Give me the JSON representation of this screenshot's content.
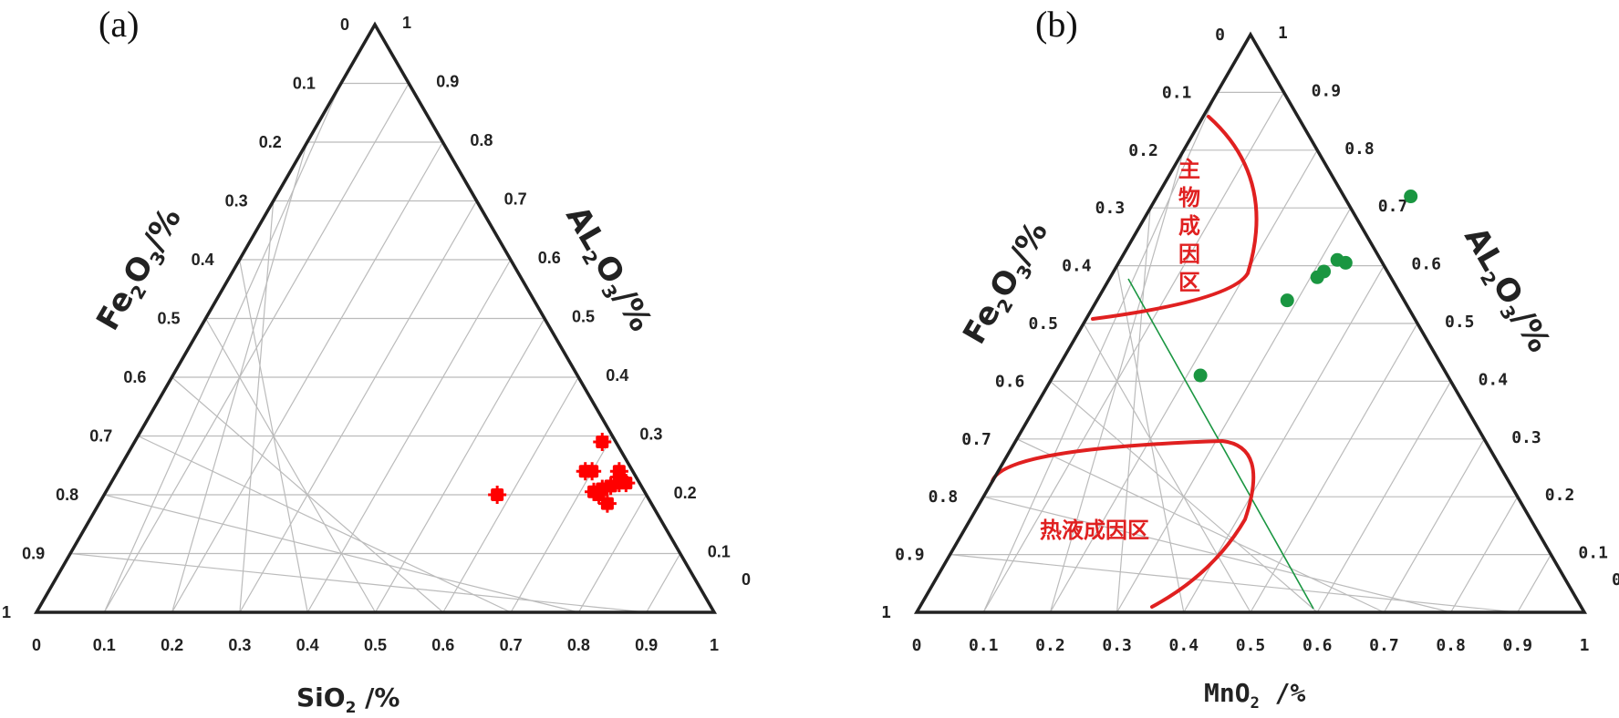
{
  "chart_data": [
    {
      "type": "scatter",
      "subtype": "ternary",
      "panel_label": "(a)",
      "colors": {
        "frame": "#222222",
        "grid": "#bbbbbb",
        "points": "#ff0000"
      },
      "ticks": [
        "0",
        "0.1",
        "0.2",
        "0.3",
        "0.4",
        "0.5",
        "0.6",
        "0.7",
        "0.8",
        "0.9",
        "1"
      ],
      "axes": {
        "left": {
          "label_parts": [
            "Fe",
            "2",
            "O",
            "3",
            "/%"
          ]
        },
        "right": {
          "label_parts": [
            "AL",
            "2",
            "O",
            "3",
            "/%"
          ]
        },
        "bottom": {
          "label_parts": [
            "SiO",
            "2",
            " /%"
          ]
        }
      },
      "grid": true,
      "marker": "filled-square",
      "points": [
        {
          "x": 0.69,
          "y": 0.29
        },
        {
          "x": 0.69,
          "y": 0.24
        },
        {
          "x": 0.7,
          "y": 0.24
        },
        {
          "x": 0.74,
          "y": 0.24
        },
        {
          "x": 0.745,
          "y": 0.23
        },
        {
          "x": 0.73,
          "y": 0.21
        },
        {
          "x": 0.74,
          "y": 0.215
        },
        {
          "x": 0.75,
          "y": 0.22
        },
        {
          "x": 0.76,
          "y": 0.22
        },
        {
          "x": 0.72,
          "y": 0.205
        },
        {
          "x": 0.73,
          "y": 0.2
        },
        {
          "x": 0.75,
          "y": 0.185
        },
        {
          "x": 0.58,
          "y": 0.2
        }
      ]
    },
    {
      "type": "scatter",
      "subtype": "ternary",
      "panel_label": "(b)",
      "colors": {
        "frame": "#222222",
        "grid": "#bbbbbb",
        "points": "#1a9641",
        "boundary": "#e02020",
        "trend": "#1a9641"
      },
      "ticks": [
        "0",
        "0.1",
        "0.2",
        "0.3",
        "0.4",
        "0.5",
        "0.6",
        "0.7",
        "0.8",
        "0.9",
        "1"
      ],
      "axes": {
        "left": {
          "label_parts": [
            "Fe",
            "2",
            "O",
            "3",
            "/%"
          ]
        },
        "right": {
          "label_parts": [
            "AL",
            "2",
            "O",
            "3",
            "/%"
          ]
        },
        "bottom": {
          "label_parts": [
            "MnO",
            "2",
            " /%"
          ]
        }
      },
      "grid": true,
      "marker": "circle",
      "regions": [
        {
          "label_lines": [
            "主",
            "物",
            "成",
            "因",
            "区"
          ]
        },
        {
          "label": "热液成因区"
        }
      ],
      "points": [
        {
          "x": 0.38,
          "y": 0.72
        },
        {
          "x": 0.325,
          "y": 0.61
        },
        {
          "x": 0.34,
          "y": 0.605
        },
        {
          "x": 0.315,
          "y": 0.59
        },
        {
          "x": 0.31,
          "y": 0.58
        },
        {
          "x": 0.285,
          "y": 0.54
        },
        {
          "x": 0.22,
          "y": 0.41
        }
      ]
    }
  ]
}
